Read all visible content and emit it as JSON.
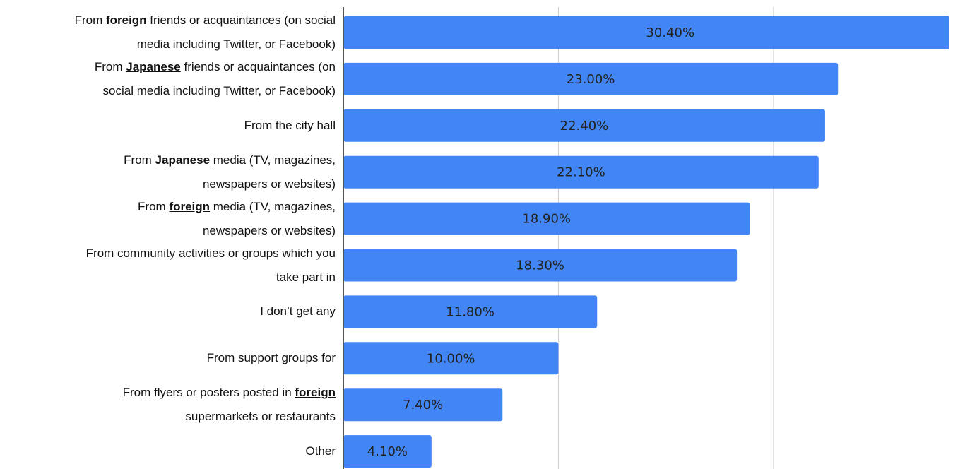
{
  "chart_data": {
    "type": "bar",
    "orientation": "horizontal",
    "categories": [
      "From foreign friends or acquaintances (on social\nmedia including Twitter, or Facebook)",
      "From Japanese friends or acquaintances (on\nsocial media including Twitter, or Facebook)",
      "From the city hall",
      "From Japanese media (TV, magazines,\nnewspapers or websites)",
      "From foreign media (TV, magazines,\nnewspapers or websites)",
      "From community activities or groups which you\ntake part in",
      "I don’t get any",
      "From support groups for",
      "From flyers or posters posted in foreign\nsupermarkets or restaurants",
      "Other"
    ],
    "emphasis": [
      "foreign",
      "Japanese"
    ],
    "values": [
      30.4,
      23.0,
      22.4,
      22.1,
      18.9,
      18.3,
      11.8,
      10.0,
      7.4,
      4.1
    ],
    "value_labels": [
      "30.40%",
      "23.00%",
      "22.40%",
      "22.10%",
      "18.90%",
      "18.30%",
      "11.80%",
      "10.00%",
      "7.40%",
      "4.10%"
    ],
    "color": "#4285f4",
    "xlim": [
      0,
      28.15
    ],
    "xticks": [
      10,
      20
    ],
    "grid": true
  }
}
